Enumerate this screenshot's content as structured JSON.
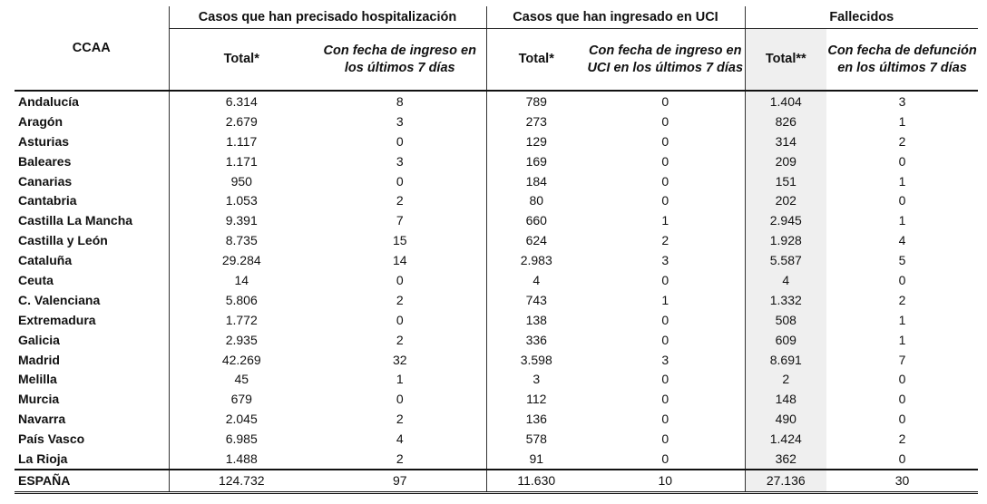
{
  "header": {
    "ccaa": "CCAA",
    "groups": [
      "Casos que han precisado hospitalización",
      "Casos que han ingresado en UCI",
      "Fallecidos"
    ],
    "sub": {
      "hosp_total": "Total*",
      "hosp_7d": "Con fecha de ingreso en  los últimos 7 días",
      "uci_total": "Total*",
      "uci_7d": "Con fecha de ingreso en UCI en  los últimos 7 días",
      "fall_total": "Total**",
      "fall_7d": "Con fecha de defunción en  los últimos 7 días"
    }
  },
  "rows": [
    [
      "Andalucía",
      "6.314",
      "8",
      "789",
      "0",
      "1.404",
      "3"
    ],
    [
      "Aragón",
      "2.679",
      "3",
      "273",
      "0",
      "826",
      "1"
    ],
    [
      "Asturias",
      "1.117",
      "0",
      "129",
      "0",
      "314",
      "2"
    ],
    [
      "Baleares",
      "1.171",
      "3",
      "169",
      "0",
      "209",
      "0"
    ],
    [
      "Canarias",
      "950",
      "0",
      "184",
      "0",
      "151",
      "1"
    ],
    [
      "Cantabria",
      "1.053",
      "2",
      "80",
      "0",
      "202",
      "0"
    ],
    [
      "Castilla La Mancha",
      "9.391",
      "7",
      "660",
      "1",
      "2.945",
      "1"
    ],
    [
      "Castilla y León",
      "8.735",
      "15",
      "624",
      "2",
      "1.928",
      "4"
    ],
    [
      "Cataluña",
      "29.284",
      "14",
      "2.983",
      "3",
      "5.587",
      "5"
    ],
    [
      "Ceuta",
      "14",
      "0",
      "4",
      "0",
      "4",
      "0"
    ],
    [
      "C. Valenciana",
      "5.806",
      "2",
      "743",
      "1",
      "1.332",
      "2"
    ],
    [
      "Extremadura",
      "1.772",
      "0",
      "138",
      "0",
      "508",
      "1"
    ],
    [
      "Galicia",
      "2.935",
      "2",
      "336",
      "0",
      "609",
      "1"
    ],
    [
      "Madrid",
      "42.269",
      "32",
      "3.598",
      "3",
      "8.691",
      "7"
    ],
    [
      "Melilla",
      "45",
      "1",
      "3",
      "0",
      "2",
      "0"
    ],
    [
      "Murcia",
      "679",
      "0",
      "112",
      "0",
      "148",
      "0"
    ],
    [
      "Navarra",
      "2.045",
      "2",
      "136",
      "0",
      "490",
      "0"
    ],
    [
      "País Vasco",
      "6.985",
      "4",
      "578",
      "0",
      "1.424",
      "2"
    ],
    [
      "La Rioja",
      "1.488",
      "2",
      "91",
      "0",
      "362",
      "0"
    ]
  ],
  "total": [
    "ESPAÑA",
    "124.732",
    "97",
    "11.630",
    "10",
    "27.136",
    "30"
  ],
  "colors": {
    "shade": "#efefef",
    "rule": "#111111"
  }
}
